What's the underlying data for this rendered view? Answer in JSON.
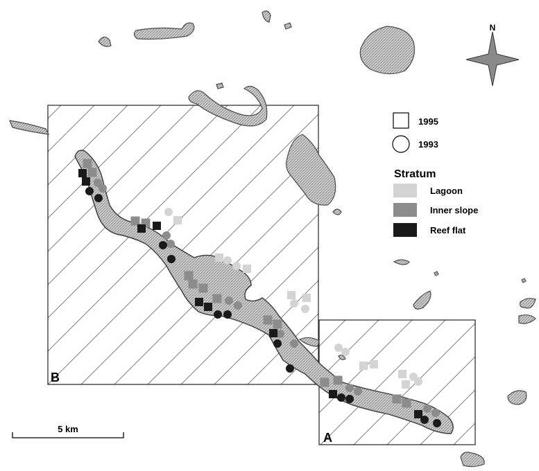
{
  "north_label": "N",
  "box_labels": {
    "a": "A",
    "b": "B"
  },
  "scale_bar": {
    "label": "5 km"
  },
  "legend": {
    "year_1995": "1995",
    "year_1993": "1993",
    "stratum_title": "Stratum",
    "strata": [
      {
        "label": "Lagoon",
        "color": "#d4d4d4"
      },
      {
        "label": "Inner slope",
        "color": "#8c8c8c"
      },
      {
        "label": "Reef flat",
        "color": "#1a1a1a"
      }
    ]
  },
  "symbol_shapes": {
    "1995": "square",
    "1993": "circle"
  }
}
